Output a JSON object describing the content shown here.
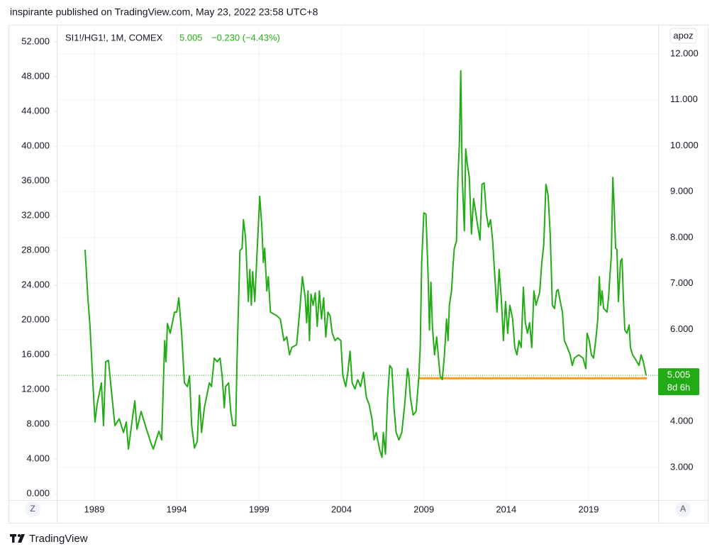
{
  "header": "inspirante published on TradingView.com, May 23, 2022 23:58 UTC+8",
  "footer": "TradingView",
  "chart_data": {
    "type": "line",
    "legend": {
      "symbol": "SI1!/HG1!, 1M, COMEX",
      "change": "−0.230 (−4.43%)"
    },
    "countdown": "8d 6h",
    "buttons": {
      "left": "Z",
      "right": "A",
      "scale": "apoz"
    },
    "grid": true,
    "xlim": [
      1986.72,
      2023.22
    ],
    "xticks": [
      1989,
      1994,
      1999,
      2004,
      2009,
      2014,
      2019
    ],
    "ylim": [
      -0.73,
      53.96
    ],
    "yticks": [
      {
        "value": 0,
        "label": "0.000"
      },
      {
        "value": 4,
        "label": "4.000"
      },
      {
        "value": 8,
        "label": "8.000"
      },
      {
        "value": 12,
        "label": "12.000"
      },
      {
        "value": 16,
        "label": "16.000"
      },
      {
        "value": 20,
        "label": "20.000"
      },
      {
        "value": 24,
        "label": "24.000"
      },
      {
        "value": 28,
        "label": "28.000"
      },
      {
        "value": 32,
        "label": "32.000"
      },
      {
        "value": 36,
        "label": "36.000"
      },
      {
        "value": 40,
        "label": "40.000"
      },
      {
        "value": 44,
        "label": "44.000"
      },
      {
        "value": 48,
        "label": "48.000"
      },
      {
        "value": 52,
        "label": "52.000"
      }
    ],
    "y2lim": [
      2.29,
      12.63
    ],
    "y2ticks": [
      {
        "value": 3,
        "label": "3.000"
      },
      {
        "value": 4,
        "label": "4.000"
      },
      {
        "value": 6,
        "label": "6.000"
      },
      {
        "value": 7,
        "label": "7.000"
      },
      {
        "value": 8,
        "label": "8.000"
      },
      {
        "value": 9,
        "label": "9.000"
      },
      {
        "value": 10,
        "label": "10.000"
      },
      {
        "value": 11,
        "label": "11.000"
      },
      {
        "value": 12,
        "label": "12.000"
      }
    ],
    "hline": {
      "value": 4.94,
      "x": [
        2008.7,
        2022.55
      ],
      "color": "#f59d1e"
    },
    "x": [
      1988.44,
      1988.61,
      1988.74,
      1988.87,
      1989.04,
      1989.17,
      1989.43,
      1989.56,
      1989.69,
      1989.86,
      1989.99,
      1990.25,
      1990.51,
      1990.77,
      1990.94,
      1991.07,
      1991.37,
      1991.46,
      1991.59,
      1991.84,
      1992.1,
      1992.41,
      1992.58,
      1992.92,
      1993.09,
      1993.27,
      1993.35,
      1993.44,
      1993.61,
      1993.87,
      1994.0,
      1994.13,
      1994.3,
      1994.47,
      1994.65,
      1994.78,
      1994.91,
      1995.08,
      1995.25,
      1995.38,
      1995.51,
      1995.68,
      1995.98,
      1996.11,
      1996.28,
      1996.46,
      1996.63,
      1996.76,
      1996.89,
      1996.97,
      1997.15,
      1997.28,
      1997.41,
      1997.58,
      1997.66,
      1997.84,
      1997.97,
      1998.05,
      1998.18,
      1998.35,
      1998.44,
      1998.53,
      1998.61,
      1998.74,
      1998.87,
      1999.04,
      1999.17,
      1999.26,
      1999.34,
      1999.47,
      1999.56,
      1999.69,
      2000.08,
      2000.29,
      2000.51,
      2000.68,
      2000.85,
      2000.98,
      2001.28,
      2001.46,
      2001.63,
      2001.8,
      2001.89,
      2001.97,
      2002.06,
      2002.15,
      2002.28,
      2002.41,
      2002.53,
      2002.66,
      2002.79,
      2002.92,
      2003.05,
      2003.18,
      2003.31,
      2003.44,
      2003.61,
      2003.78,
      2003.96,
      2004.09,
      2004.26,
      2004.39,
      2004.52,
      2004.65,
      2004.82,
      2004.99,
      2005.16,
      2005.34,
      2005.51,
      2005.68,
      2005.85,
      2005.98,
      2006.11,
      2006.33,
      2006.46,
      2006.54,
      2006.67,
      2006.8,
      2006.93,
      2007.06,
      2007.19,
      2007.32,
      2007.49,
      2007.66,
      2007.84,
      2008.01,
      2008.09,
      2008.18,
      2008.35,
      2008.53,
      2008.7,
      2008.78,
      2008.87,
      2009.0,
      2009.13,
      2009.26,
      2009.34,
      2009.43,
      2009.52,
      2009.65,
      2009.78,
      2009.91,
      2009.99,
      2010.12,
      2010.25,
      2010.38,
      2010.47,
      2010.55,
      2010.68,
      2010.77,
      2010.85,
      2010.98,
      2011.07,
      2011.16,
      2011.24,
      2011.33,
      2011.46,
      2011.54,
      2011.63,
      2011.76,
      2011.89,
      2012.02,
      2012.15,
      2012.28,
      2012.41,
      2012.53,
      2012.66,
      2012.79,
      2012.92,
      2013.05,
      2013.18,
      2013.31,
      2013.44,
      2013.57,
      2013.7,
      2013.83,
      2013.96,
      2014.09,
      2014.22,
      2014.39,
      2014.52,
      2014.65,
      2014.78,
      2014.91,
      2015.04,
      2015.16,
      2015.29,
      2015.42,
      2015.55,
      2015.68,
      2015.81,
      2016.03,
      2016.16,
      2016.28,
      2016.41,
      2016.54,
      2016.67,
      2016.8,
      2016.93,
      2017.06,
      2017.15,
      2017.28,
      2017.41,
      2017.53,
      2017.71,
      2017.88,
      2018.01,
      2018.14,
      2018.4,
      2018.66,
      2018.83,
      2018.91,
      2019.04,
      2019.17,
      2019.3,
      2019.43,
      2019.56,
      2019.65,
      2019.73,
      2019.82,
      2019.91,
      2020.12,
      2020.21,
      2020.29,
      2020.38,
      2020.47,
      2020.55,
      2020.64,
      2020.72,
      2020.81,
      2020.94,
      2021.03,
      2021.11,
      2021.2,
      2021.33,
      2021.46,
      2021.54,
      2021.67,
      2021.8,
      2021.93,
      2022.06,
      2022.19,
      2022.32,
      2022.49
    ],
    "series": [
      {
        "name": "SI1!/HG1!, 1M, COMEX",
        "color": "#22ab14",
        "axis": "y2",
        "values": [
          7.74,
          6.69,
          6.07,
          5.15,
          3.99,
          4.37,
          4.84,
          3.91,
          5.3,
          5.33,
          4.84,
          3.91,
          4.06,
          3.76,
          3.99,
          3.4,
          4.22,
          4.45,
          3.83,
          4.22,
          3.91,
          3.56,
          3.4,
          3.79,
          3.6,
          5.76,
          5.3,
          6.13,
          5.92,
          6.38,
          6.38,
          6.69,
          5.92,
          4.84,
          4.76,
          4.99,
          3.91,
          3.42,
          3.57,
          4.57,
          3.76,
          4.3,
          4.84,
          4.76,
          5.38,
          5.3,
          5.38,
          4.99,
          4.3,
          4.76,
          4.84,
          4.22,
          3.91,
          3.91,
          5.3,
          7.72,
          7.77,
          8.39,
          8.0,
          6.61,
          7.31,
          6.53,
          7.26,
          6.61,
          7.61,
          8.9,
          8.23,
          7.46,
          7.77,
          6.84,
          7.15,
          6.38,
          6.3,
          6.23,
          5.76,
          5.84,
          5.45,
          5.61,
          5.67,
          6.38,
          7.15,
          6.69,
          6.15,
          6.84,
          5.76,
          6.77,
          6.53,
          6.8,
          6.07,
          6.84,
          6.23,
          6.69,
          5.84,
          6.38,
          6.3,
          5.92,
          5.76,
          5.82,
          5.76,
          4.99,
          4.76,
          5.07,
          5.53,
          4.84,
          4.71,
          4.91,
          4.76,
          5.07,
          4.53,
          4.37,
          4.06,
          3.6,
          3.76,
          3.37,
          3.22,
          3.76,
          3.29,
          4.53,
          5.22,
          5.15,
          4.3,
          3.76,
          3.6,
          3.76,
          4.37,
          5.15,
          4.99,
          4.53,
          4.14,
          4.22,
          4.99,
          5.61,
          7.46,
          8.54,
          8.51,
          7.15,
          5.99,
          7.03,
          6.07,
          5.45,
          5.84,
          5.3,
          4.99,
          4.91,
          5.45,
          6.23,
          5.76,
          6.53,
          6.84,
          7.38,
          7.77,
          7.92,
          9.31,
          10.08,
          11.63,
          9.31,
          8.15,
          9.93,
          9.62,
          9.31,
          8.08,
          8.85,
          8.54,
          8.23,
          7.95,
          9.16,
          9.19,
          8.54,
          8.23,
          8.39,
          7.92,
          7.15,
          6.38,
          7.31,
          6.69,
          5.76,
          6.61,
          5.92,
          6.53,
          6.23,
          5.61,
          5.45,
          5.76,
          5.61,
          6.92,
          6.15,
          5.92,
          6.15,
          5.61,
          6.84,
          6.53,
          6.81,
          7.46,
          7.85,
          9.16,
          8.93,
          8.08,
          6.53,
          6.46,
          6.84,
          6.87,
          6.61,
          6.38,
          5.76,
          5.61,
          5.45,
          5.22,
          5.38,
          5.45,
          5.38,
          5.15,
          5.92,
          5.76,
          5.45,
          5.38,
          5.76,
          6.23,
          7.15,
          6.53,
          6.84,
          6.46,
          6.38,
          6.69,
          7.15,
          7.61,
          9.31,
          8.69,
          7.77,
          7.74,
          6.61,
          7.49,
          7.54,
          6.69,
          5.99,
          5.92,
          6.1,
          5.61,
          5.45,
          5.38,
          5.3,
          5.22,
          5.45,
          5.3,
          5.005
        ]
      }
    ]
  }
}
